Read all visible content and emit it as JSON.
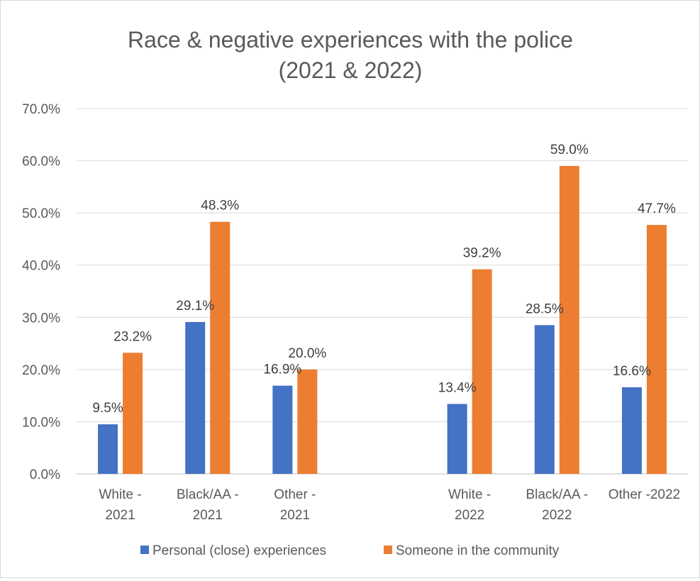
{
  "chart_data": {
    "type": "bar",
    "title": "Race & negative experiences with the police",
    "subtitle": "(2021 & 2022)",
    "categories": [
      [
        "White -",
        "2021"
      ],
      [
        "Black/AA -",
        "2021"
      ],
      [
        "Other -",
        "2021"
      ],
      [
        "",
        ""
      ],
      [
        "White -",
        "2022"
      ],
      [
        "Black/AA -",
        "2022"
      ],
      [
        "Other -2022",
        ""
      ]
    ],
    "series": [
      {
        "name": "Personal (close) experiences",
        "color": "#4472c4",
        "values": [
          9.5,
          29.1,
          16.9,
          null,
          13.4,
          28.5,
          16.6
        ],
        "labels": [
          "9.5%",
          "29.1%",
          "16.9%",
          "",
          "13.4%",
          "28.5%",
          "16.6%"
        ]
      },
      {
        "name": "Someone in the community",
        "color": "#ed7d31",
        "values": [
          23.2,
          48.3,
          20.0,
          null,
          39.2,
          59.0,
          47.7
        ],
        "labels": [
          "23.2%",
          "48.3%",
          "20.0%",
          "",
          "39.2%",
          "59.0%",
          "47.7%"
        ]
      }
    ],
    "ylim": [
      0,
      70
    ],
    "yticks": [
      "0.0%",
      "10.0%",
      "20.0%",
      "30.0%",
      "40.0%",
      "50.0%",
      "60.0%",
      "70.0%"
    ],
    "xlabel": "",
    "ylabel": "",
    "grid": true,
    "legend": "bottom"
  }
}
